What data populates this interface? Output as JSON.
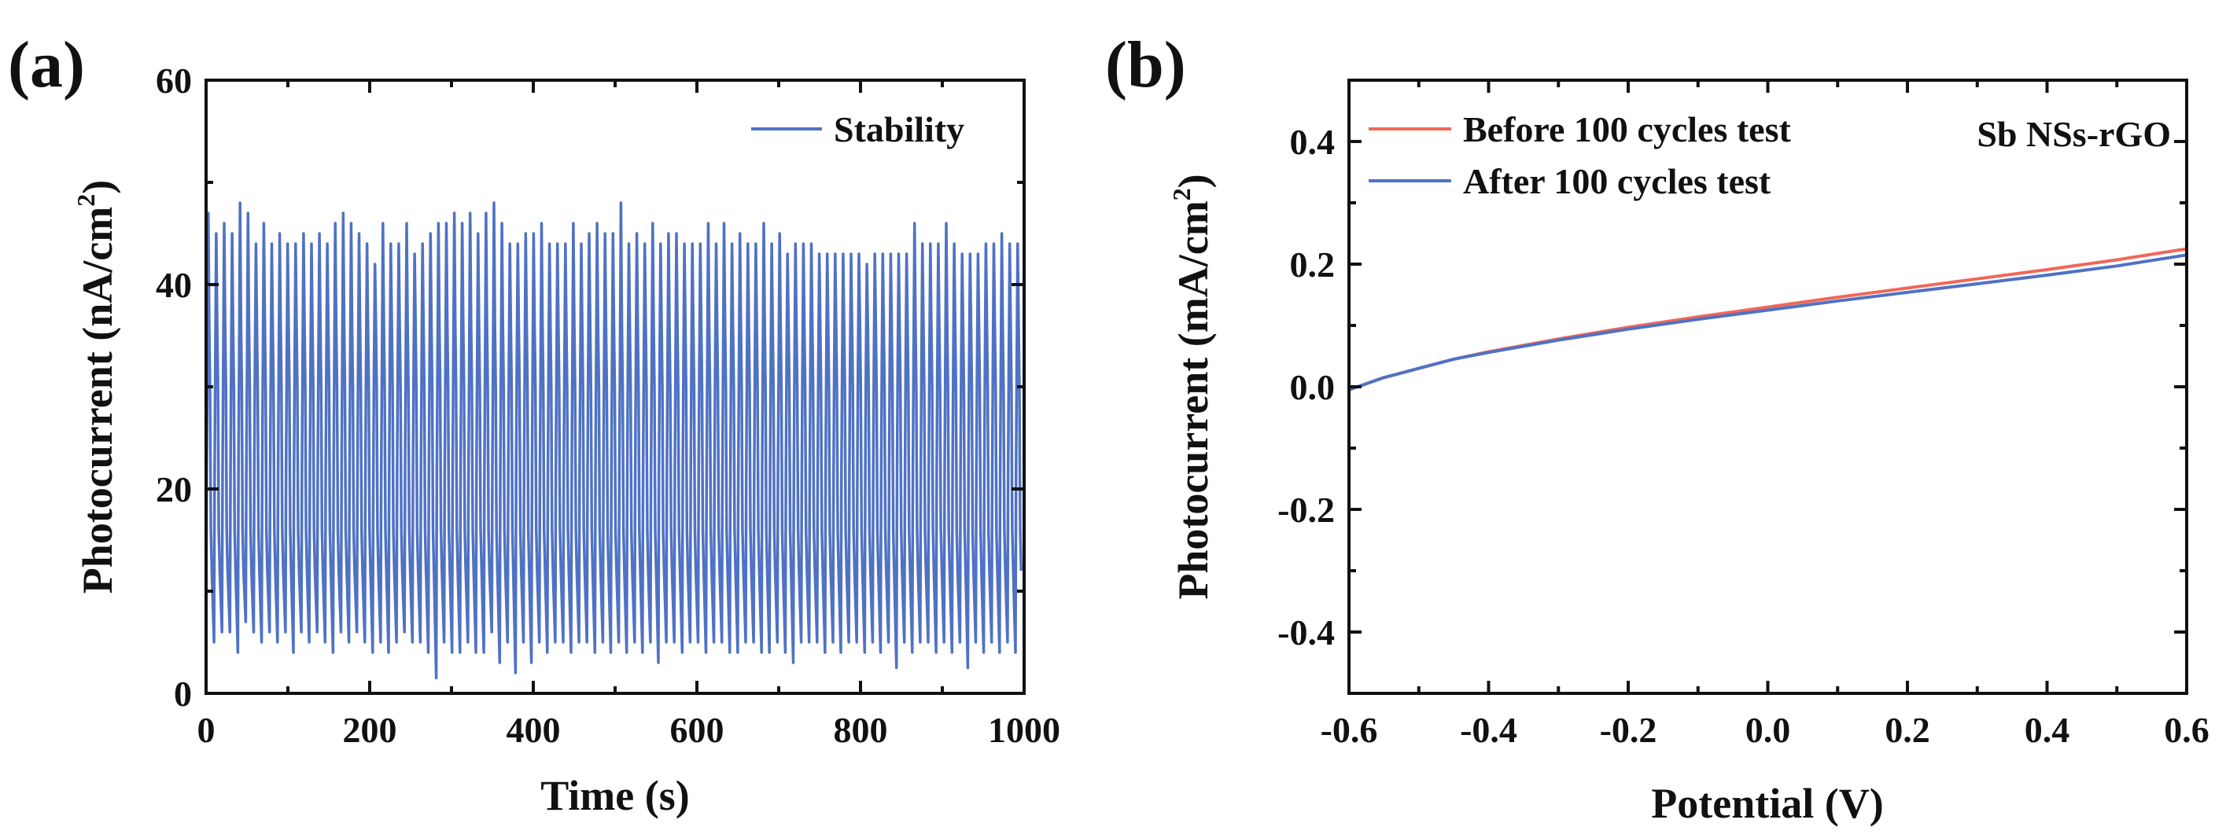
{
  "chart_data": [
    {
      "panel_label": "(a)",
      "type": "line",
      "xlabel": "Time (s)",
      "ylabel": {
        "main": "Photocurrent (nA/cm",
        "sup": "2",
        "end": ")"
      },
      "xlim": [
        0,
        1000
      ],
      "ylim": [
        0,
        60
      ],
      "xticks": [
        0,
        200,
        400,
        600,
        800,
        1000
      ],
      "xtick_labels": [
        "0",
        "200",
        "400",
        "600",
        "800",
        "1000"
      ],
      "yticks": [
        0,
        20,
        40,
        60
      ],
      "ytick_labels": [
        "0",
        "20",
        "40",
        "60"
      ],
      "legend_position": "top-right",
      "series": [
        {
          "name": "Stability",
          "color": "#4f72c4",
          "period_s": 9.7,
          "peak_values": [
            47,
            45,
            46,
            45,
            48,
            47,
            44,
            46,
            44,
            45,
            44,
            44,
            45,
            44,
            45,
            44,
            46,
            47,
            46,
            45,
            44,
            42,
            46,
            44,
            44,
            46,
            43,
            44,
            45,
            46,
            46,
            47,
            46,
            47,
            45,
            47,
            48,
            46,
            44,
            44,
            45,
            45,
            46,
            44,
            44,
            44,
            46,
            44,
            45,
            46,
            45,
            45,
            48,
            44,
            45,
            44,
            46,
            44,
            45,
            45,
            44,
            44,
            44,
            46,
            44,
            46,
            44,
            45,
            44,
            44,
            46,
            44,
            45,
            43,
            44,
            44,
            44,
            43,
            43,
            43,
            43,
            43,
            43,
            42,
            43,
            43,
            43,
            43,
            43,
            46,
            44,
            44,
            44,
            46,
            44,
            43,
            43,
            43,
            44,
            44,
            45,
            44,
            44
          ],
          "trough_values": [
            8,
            5,
            6,
            6,
            4,
            7,
            6,
            5,
            6,
            5,
            6,
            4,
            6,
            5,
            6,
            5,
            4,
            6,
            5,
            6,
            5,
            4,
            5,
            4,
            5,
            6,
            5,
            5,
            4,
            1.5,
            5,
            4,
            4,
            5,
            4,
            4,
            6,
            3,
            5,
            2,
            5,
            3,
            5,
            4,
            5,
            5,
            4,
            5,
            5,
            4,
            5,
            4,
            5,
            4,
            5,
            4,
            5,
            3,
            5,
            5,
            4,
            5,
            5,
            4,
            5,
            5,
            4,
            4,
            5,
            5,
            4,
            4,
            5,
            4,
            3,
            5,
            5,
            5,
            4,
            5,
            4,
            5,
            5,
            4,
            5,
            4,
            5,
            2.5,
            5,
            4,
            5,
            5,
            4,
            5,
            4,
            5,
            2.5,
            5,
            4,
            5,
            4,
            5,
            4
          ]
        }
      ]
    },
    {
      "panel_label": "(b)",
      "type": "line",
      "xlabel": "Potential (V)",
      "ylabel": {
        "main": "Photocurrent (mA/cm",
        "sup": "2",
        "end": ")"
      },
      "xlim": [
        -0.6,
        0.6
      ],
      "ylim": [
        -0.5,
        0.5
      ],
      "xticks": [
        -0.6,
        -0.4,
        -0.2,
        0.0,
        0.2,
        0.4,
        0.6
      ],
      "xtick_labels": [
        "-0.6",
        "-0.4",
        "-0.2",
        "0.0",
        "0.2",
        "0.4",
        "0.6"
      ],
      "yticks": [
        -0.4,
        -0.2,
        0.0,
        0.2,
        0.4
      ],
      "ytick_labels": [
        "-0.4",
        "-0.2",
        "0.0",
        "0.2",
        "0.4"
      ],
      "legend_position": "top-left",
      "annotation": "Sb NSs-rGO",
      "series": [
        {
          "name": "Before 100 cycles test",
          "color": "#f0675a",
          "x": [
            -0.6,
            -0.55,
            -0.5,
            -0.45,
            -0.4,
            -0.3,
            -0.2,
            -0.1,
            0.0,
            0.1,
            0.2,
            0.3,
            0.4,
            0.5,
            0.6
          ],
          "y": [
            -0.005,
            0.015,
            0.03,
            0.045,
            0.057,
            0.078,
            0.097,
            0.114,
            0.13,
            0.146,
            0.161,
            0.176,
            0.191,
            0.207,
            0.225
          ]
        },
        {
          "name": "After 100 cycles test",
          "color": "#4f72c4",
          "x": [
            -0.6,
            -0.55,
            -0.5,
            -0.45,
            -0.4,
            -0.3,
            -0.2,
            -0.1,
            0.0,
            0.1,
            0.2,
            0.3,
            0.4,
            0.5,
            0.6
          ],
          "y": [
            -0.005,
            0.015,
            0.03,
            0.045,
            0.056,
            0.076,
            0.094,
            0.11,
            0.125,
            0.14,
            0.154,
            0.168,
            0.182,
            0.197,
            0.215
          ]
        }
      ]
    }
  ]
}
